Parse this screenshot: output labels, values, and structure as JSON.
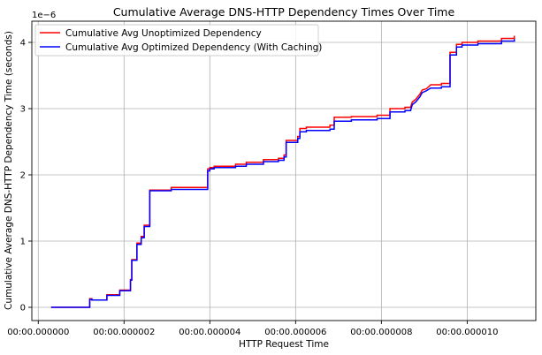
{
  "chart_data": {
    "type": "line",
    "title": "Cumulative Average DNS-HTTP Dependency Times Over Time",
    "xlabel": "HTTP Request Time",
    "ylabel": "Cumulative Average DNS-HTTP Dependency Time (seconds)",
    "y_offset_text": "1e−6",
    "xlim": [
      -0.15,
      11.6
    ],
    "ylim": [
      -0.2,
      4.32
    ],
    "x_unit": "microseconds",
    "x_ticks": [
      0,
      2,
      4,
      6,
      8,
      10
    ],
    "x_tick_labels": [
      "00:00.000000",
      "00:00.000002",
      "00:00.000004",
      "00:00.000006",
      "00:00.000008",
      "00:00.000010"
    ],
    "y_ticks": [
      0,
      1,
      2,
      3,
      4
    ],
    "y_tick_labels": [
      "0",
      "1",
      "2",
      "3",
      "4"
    ],
    "grid": true,
    "legend_position": "top-left",
    "series": [
      {
        "name": "Cumulative Avg Unoptimized Dependency",
        "color": "#ff0000",
        "points": [
          [
            0.3,
            0
          ],
          [
            1.2,
            0
          ],
          [
            1.2,
            0.13
          ],
          [
            1.25,
            0.13
          ],
          [
            1.25,
            0.11
          ],
          [
            1.6,
            0.11
          ],
          [
            1.6,
            0.19
          ],
          [
            1.9,
            0.19
          ],
          [
            1.9,
            0.26
          ],
          [
            2.15,
            0.26
          ],
          [
            2.15,
            0.42
          ],
          [
            2.18,
            0.42
          ],
          [
            2.18,
            0.72
          ],
          [
            2.3,
            0.72
          ],
          [
            2.3,
            0.97
          ],
          [
            2.4,
            0.97
          ],
          [
            2.4,
            1.07
          ],
          [
            2.47,
            1.07
          ],
          [
            2.47,
            1.24
          ],
          [
            2.6,
            1.24
          ],
          [
            2.6,
            1.77
          ],
          [
            3.1,
            1.77
          ],
          [
            3.1,
            1.81
          ],
          [
            3.95,
            1.81
          ],
          [
            3.95,
            2.09
          ],
          [
            4.0,
            2.09
          ],
          [
            4.0,
            2.11
          ],
          [
            4.1,
            2.11
          ],
          [
            4.1,
            2.13
          ],
          [
            4.6,
            2.13
          ],
          [
            4.6,
            2.16
          ],
          [
            4.85,
            2.16
          ],
          [
            4.85,
            2.19
          ],
          [
            5.25,
            2.19
          ],
          [
            5.25,
            2.23
          ],
          [
            5.6,
            2.23
          ],
          [
            5.6,
            2.25
          ],
          [
            5.73,
            2.25
          ],
          [
            5.73,
            2.3
          ],
          [
            5.78,
            2.3
          ],
          [
            5.78,
            2.52
          ],
          [
            6.05,
            2.52
          ],
          [
            6.05,
            2.58
          ],
          [
            6.1,
            2.58
          ],
          [
            6.1,
            2.7
          ],
          [
            6.25,
            2.7
          ],
          [
            6.25,
            2.72
          ],
          [
            6.8,
            2.72
          ],
          [
            6.8,
            2.75
          ],
          [
            6.9,
            2.75
          ],
          [
            6.9,
            2.87
          ],
          [
            7.3,
            2.87
          ],
          [
            7.3,
            2.88
          ],
          [
            7.9,
            2.88
          ],
          [
            7.9,
            2.9
          ],
          [
            8.2,
            2.9
          ],
          [
            8.2,
            3.0
          ],
          [
            8.55,
            3.0
          ],
          [
            8.55,
            3.02
          ],
          [
            8.68,
            3.02
          ],
          [
            8.72,
            3.1
          ],
          [
            8.8,
            3.14
          ],
          [
            8.85,
            3.18
          ],
          [
            8.9,
            3.22
          ],
          [
            8.95,
            3.28
          ],
          [
            9.05,
            3.3
          ],
          [
            9.15,
            3.36
          ],
          [
            9.4,
            3.36
          ],
          [
            9.4,
            3.38
          ],
          [
            9.6,
            3.38
          ],
          [
            9.6,
            3.85
          ],
          [
            9.75,
            3.85
          ],
          [
            9.75,
            3.97
          ],
          [
            9.88,
            3.97
          ],
          [
            9.88,
            4.0
          ],
          [
            10.25,
            4.0
          ],
          [
            10.25,
            4.02
          ],
          [
            10.8,
            4.02
          ],
          [
            10.8,
            4.06
          ],
          [
            11.1,
            4.06
          ],
          [
            11.1,
            4.1
          ]
        ]
      },
      {
        "name": "Cumulative Avg Optimized Dependency (With Caching)",
        "color": "#0000ff",
        "points": [
          [
            0.3,
            0
          ],
          [
            1.2,
            0
          ],
          [
            1.2,
            0.12
          ],
          [
            1.25,
            0.12
          ],
          [
            1.25,
            0.11
          ],
          [
            1.6,
            0.11
          ],
          [
            1.6,
            0.18
          ],
          [
            1.9,
            0.18
          ],
          [
            1.9,
            0.25
          ],
          [
            2.15,
            0.25
          ],
          [
            2.15,
            0.41
          ],
          [
            2.18,
            0.41
          ],
          [
            2.18,
            0.71
          ],
          [
            2.3,
            0.71
          ],
          [
            2.3,
            0.95
          ],
          [
            2.4,
            0.95
          ],
          [
            2.4,
            1.05
          ],
          [
            2.47,
            1.05
          ],
          [
            2.47,
            1.22
          ],
          [
            2.6,
            1.22
          ],
          [
            2.6,
            1.76
          ],
          [
            3.1,
            1.76
          ],
          [
            3.1,
            1.78
          ],
          [
            3.95,
            1.78
          ],
          [
            3.95,
            2.06
          ],
          [
            4.0,
            2.06
          ],
          [
            4.0,
            2.09
          ],
          [
            4.1,
            2.09
          ],
          [
            4.1,
            2.11
          ],
          [
            4.6,
            2.11
          ],
          [
            4.6,
            2.13
          ],
          [
            4.85,
            2.13
          ],
          [
            4.85,
            2.16
          ],
          [
            5.25,
            2.16
          ],
          [
            5.25,
            2.2
          ],
          [
            5.6,
            2.2
          ],
          [
            5.6,
            2.22
          ],
          [
            5.73,
            2.22
          ],
          [
            5.73,
            2.27
          ],
          [
            5.78,
            2.27
          ],
          [
            5.78,
            2.49
          ],
          [
            6.05,
            2.49
          ],
          [
            6.05,
            2.55
          ],
          [
            6.1,
            2.55
          ],
          [
            6.1,
            2.65
          ],
          [
            6.25,
            2.65
          ],
          [
            6.25,
            2.67
          ],
          [
            6.8,
            2.67
          ],
          [
            6.8,
            2.69
          ],
          [
            6.9,
            2.69
          ],
          [
            6.9,
            2.81
          ],
          [
            7.3,
            2.81
          ],
          [
            7.3,
            2.83
          ],
          [
            7.9,
            2.83
          ],
          [
            7.9,
            2.85
          ],
          [
            8.2,
            2.85
          ],
          [
            8.2,
            2.95
          ],
          [
            8.55,
            2.95
          ],
          [
            8.55,
            2.97
          ],
          [
            8.68,
            2.97
          ],
          [
            8.72,
            3.06
          ],
          [
            8.8,
            3.1
          ],
          [
            8.85,
            3.14
          ],
          [
            8.9,
            3.18
          ],
          [
            8.95,
            3.24
          ],
          [
            9.05,
            3.27
          ],
          [
            9.15,
            3.31
          ],
          [
            9.4,
            3.31
          ],
          [
            9.4,
            3.33
          ],
          [
            9.6,
            3.33
          ],
          [
            9.6,
            3.81
          ],
          [
            9.75,
            3.81
          ],
          [
            9.75,
            3.93
          ],
          [
            9.88,
            3.93
          ],
          [
            9.88,
            3.96
          ],
          [
            10.25,
            3.96
          ],
          [
            10.25,
            3.98
          ],
          [
            10.8,
            3.98
          ],
          [
            10.8,
            4.02
          ],
          [
            11.1,
            4.02
          ],
          [
            11.1,
            4.05
          ]
        ]
      }
    ]
  }
}
